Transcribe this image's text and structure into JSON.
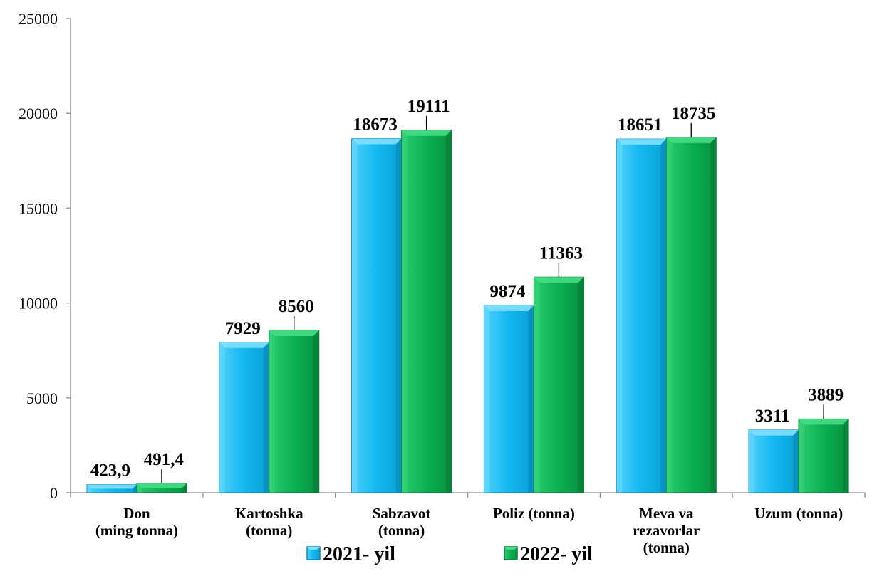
{
  "chart_data": {
    "type": "bar",
    "categories": [
      [
        "Don",
        "(ming tonna)"
      ],
      [
        "Kartoshka",
        "(tonna)"
      ],
      [
        "Sabzavot",
        "(tonna)"
      ],
      [
        "Poliz (tonna)"
      ],
      [
        "Meva va",
        "rezavorlar",
        "(tonna)"
      ],
      [
        "Uzum (tonna)"
      ]
    ],
    "series": [
      {
        "name": "2021- yil",
        "color": "#12b8f0",
        "values": [
          423.9,
          7929,
          18673,
          9874,
          18651,
          3311
        ],
        "labels": [
          "423,9",
          "7929",
          "18673",
          "9874",
          "18651",
          "3311"
        ]
      },
      {
        "name": "2022- yil",
        "color": "#0bb052",
        "values": [
          491.4,
          8560,
          19111,
          11363,
          18735,
          3889
        ],
        "labels": [
          "491,4",
          "8560",
          "19111",
          "11363",
          "18735",
          "3889"
        ]
      }
    ],
    "y_ticks": [
      "0",
      "5000",
      "10000",
      "15000",
      "20000",
      "25000"
    ],
    "ylim": [
      0,
      25000
    ],
    "grid": false,
    "legend_position": "bottom"
  }
}
